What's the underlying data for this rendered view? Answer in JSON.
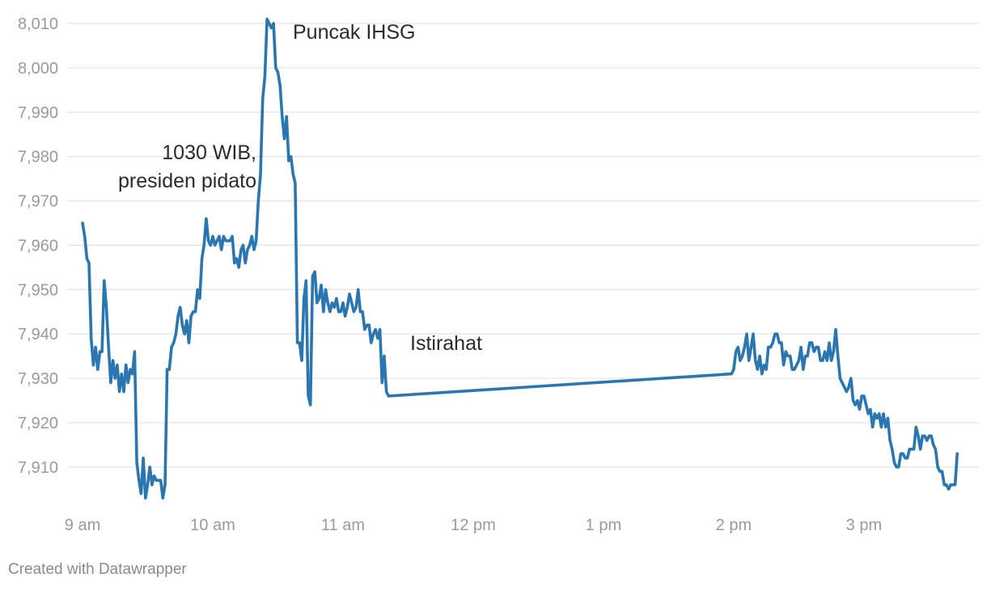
{
  "chart_data": {
    "type": "line",
    "x_unit": "time of day (WIB)",
    "xlim": [
      "9:00",
      "15:50"
    ],
    "ylim": [
      7902,
      8012
    ],
    "grid": true,
    "y_ticks": [
      7910,
      7920,
      7930,
      7940,
      7950,
      7960,
      7970,
      7980,
      7990,
      8000,
      8010
    ],
    "y_tick_labels": [
      "7,910",
      "7,920",
      "7,930",
      "7,940",
      "7,950",
      "7,960",
      "7,970",
      "7,980",
      "7,990",
      "8,000",
      "8,010"
    ],
    "x_ticks": [
      "9:00",
      "10:00",
      "11:00",
      "12:00",
      "13:00",
      "14:00",
      "15:00"
    ],
    "x_tick_labels": [
      "9 am",
      "10 am",
      "11 am",
      "12 pm",
      "1 pm",
      "2 pm",
      "3 pm"
    ],
    "series": [
      {
        "color": "#2a76b0",
        "points": [
          [
            "9:00",
            7965
          ],
          [
            "9:01",
            7962
          ],
          [
            "9:02",
            7957
          ],
          [
            "9:03",
            7956
          ],
          [
            "9:04",
            7939
          ],
          [
            "9:05",
            7933
          ],
          [
            "9:06",
            7937
          ],
          [
            "9:07",
            7932
          ],
          [
            "9:08",
            7936
          ],
          [
            "9:09",
            7936
          ],
          [
            "9:10",
            7952
          ],
          [
            "9:11",
            7946
          ],
          [
            "9:12",
            7937
          ],
          [
            "9:13",
            7929
          ],
          [
            "9:14",
            7934
          ],
          [
            "9:15",
            7930
          ],
          [
            "9:16",
            7933
          ],
          [
            "9:17",
            7927
          ],
          [
            "9:18",
            7931
          ],
          [
            "9:19",
            7927
          ],
          [
            "9:20",
            7933
          ],
          [
            "9:21",
            7929
          ],
          [
            "9:22",
            7932
          ],
          [
            "9:23",
            7931
          ],
          [
            "9:24",
            7936
          ],
          [
            "9:25",
            7911
          ],
          [
            "9:26",
            7907
          ],
          [
            "9:27",
            7904
          ],
          [
            "9:28",
            7912
          ],
          [
            "9:29",
            7903
          ],
          [
            "9:30",
            7906
          ],
          [
            "9:31",
            7910
          ],
          [
            "9:32",
            7906
          ],
          [
            "9:33",
            7908
          ],
          [
            "9:34",
            7907
          ],
          [
            "9:35",
            7907
          ],
          [
            "9:36",
            7907
          ],
          [
            "9:37",
            7903
          ],
          [
            "9:38",
            7906
          ],
          [
            "9:39",
            7932
          ],
          [
            "9:40",
            7932
          ],
          [
            "9:41",
            7937
          ],
          [
            "9:42",
            7938
          ],
          [
            "9:43",
            7940
          ],
          [
            "9:44",
            7944
          ],
          [
            "9:45",
            7946
          ],
          [
            "9:46",
            7942
          ],
          [
            "9:47",
            7940
          ],
          [
            "9:48",
            7943
          ],
          [
            "9:49",
            7938
          ],
          [
            "9:50",
            7944
          ],
          [
            "9:51",
            7945
          ],
          [
            "9:52",
            7945
          ],
          [
            "9:53",
            7950
          ],
          [
            "9:54",
            7948
          ],
          [
            "9:55",
            7957
          ],
          [
            "9:56",
            7960
          ],
          [
            "9:57",
            7966
          ],
          [
            "9:58",
            7961
          ],
          [
            "9:59",
            7960
          ],
          [
            "10:00",
            7962
          ],
          [
            "10:01",
            7960
          ],
          [
            "10:02",
            7961
          ],
          [
            "10:03",
            7962
          ],
          [
            "10:04",
            7959
          ],
          [
            "10:05",
            7962
          ],
          [
            "10:06",
            7961
          ],
          [
            "10:07",
            7961
          ],
          [
            "10:08",
            7961
          ],
          [
            "10:09",
            7962
          ],
          [
            "10:10",
            7956
          ],
          [
            "10:11",
            7957
          ],
          [
            "10:12",
            7955
          ],
          [
            "10:13",
            7959
          ],
          [
            "10:14",
            7960
          ],
          [
            "10:15",
            7956
          ],
          [
            "10:16",
            7959
          ],
          [
            "10:17",
            7960
          ],
          [
            "10:18",
            7962
          ],
          [
            "10:19",
            7959
          ],
          [
            "10:20",
            7961
          ],
          [
            "10:21",
            7970
          ],
          [
            "10:22",
            7976
          ],
          [
            "10:23",
            7993
          ],
          [
            "10:24",
            7998
          ],
          [
            "10:25",
            8011
          ],
          [
            "10:26",
            8010
          ],
          [
            "10:27",
            8009
          ],
          [
            "10:28",
            8010
          ],
          [
            "10:29",
            8000
          ],
          [
            "10:30",
            7999
          ],
          [
            "10:31",
            7996
          ],
          [
            "10:32",
            7989
          ],
          [
            "10:33",
            7984
          ],
          [
            "10:34",
            7989
          ],
          [
            "10:35",
            7979
          ],
          [
            "10:36",
            7980
          ],
          [
            "10:37",
            7976
          ],
          [
            "10:38",
            7974
          ],
          [
            "10:39",
            7938
          ],
          [
            "10:40",
            7938
          ],
          [
            "10:41",
            7934
          ],
          [
            "10:42",
            7948
          ],
          [
            "10:43",
            7952
          ],
          [
            "10:44",
            7926
          ],
          [
            "10:45",
            7924
          ],
          [
            "10:46",
            7953
          ],
          [
            "10:47",
            7954
          ],
          [
            "10:48",
            7947
          ],
          [
            "10:49",
            7948
          ],
          [
            "10:50",
            7951
          ],
          [
            "10:51",
            7945
          ],
          [
            "10:52",
            7950
          ],
          [
            "10:53",
            7947
          ],
          [
            "10:54",
            7945
          ],
          [
            "10:55",
            7947
          ],
          [
            "10:56",
            7946
          ],
          [
            "10:57",
            7948
          ],
          [
            "10:58",
            7945
          ],
          [
            "10:59",
            7945
          ],
          [
            "11:00",
            7947
          ],
          [
            "11:01",
            7944
          ],
          [
            "11:02",
            7946
          ],
          [
            "11:03",
            7949
          ],
          [
            "11:04",
            7947
          ],
          [
            "11:05",
            7945
          ],
          [
            "11:06",
            7946
          ],
          [
            "11:07",
            7950
          ],
          [
            "11:08",
            7945
          ],
          [
            "11:09",
            7945
          ],
          [
            "11:10",
            7941
          ],
          [
            "11:11",
            7942
          ],
          [
            "11:12",
            7942
          ],
          [
            "11:13",
            7938
          ],
          [
            "11:14",
            7940
          ],
          [
            "11:15",
            7941
          ],
          [
            "11:16",
            7939
          ],
          [
            "11:17",
            7941
          ],
          [
            "11:18",
            7929
          ],
          [
            "11:19",
            7935
          ],
          [
            "11:20",
            7927
          ],
          [
            "11:21",
            7926
          ],
          [
            "13:59",
            7931
          ],
          [
            "14:00",
            7932
          ],
          [
            "14:01",
            7936
          ],
          [
            "14:02",
            7937
          ],
          [
            "14:03",
            7934
          ],
          [
            "14:04",
            7935
          ],
          [
            "14:05",
            7937
          ],
          [
            "14:06",
            7940
          ],
          [
            "14:07",
            7934
          ],
          [
            "14:08",
            7937
          ],
          [
            "14:09",
            7940
          ],
          [
            "14:10",
            7934
          ],
          [
            "14:11",
            7932
          ],
          [
            "14:12",
            7935
          ],
          [
            "14:13",
            7931
          ],
          [
            "14:14",
            7933
          ],
          [
            "14:15",
            7932
          ],
          [
            "14:16",
            7937
          ],
          [
            "14:17",
            7937
          ],
          [
            "14:18",
            7938
          ],
          [
            "14:19",
            7940
          ],
          [
            "14:20",
            7940
          ],
          [
            "14:21",
            7938
          ],
          [
            "14:22",
            7938
          ],
          [
            "14:23",
            7933
          ],
          [
            "14:24",
            7936
          ],
          [
            "14:25",
            7935
          ],
          [
            "14:26",
            7935
          ],
          [
            "14:27",
            7932
          ],
          [
            "14:28",
            7932
          ],
          [
            "14:29",
            7933
          ],
          [
            "14:30",
            7934
          ],
          [
            "14:31",
            7937
          ],
          [
            "14:32",
            7932
          ],
          [
            "14:33",
            7935
          ],
          [
            "14:34",
            7935
          ],
          [
            "14:35",
            7938
          ],
          [
            "14:36",
            7938
          ],
          [
            "14:37",
            7936
          ],
          [
            "14:38",
            7937
          ],
          [
            "14:39",
            7937
          ],
          [
            "14:40",
            7934
          ],
          [
            "14:41",
            7934
          ],
          [
            "14:42",
            7936
          ],
          [
            "14:43",
            7934
          ],
          [
            "14:44",
            7938
          ],
          [
            "14:45",
            7934
          ],
          [
            "14:46",
            7936
          ],
          [
            "14:47",
            7941
          ],
          [
            "14:48",
            7935
          ],
          [
            "14:49",
            7930
          ],
          [
            "14:50",
            7929
          ],
          [
            "14:51",
            7928
          ],
          [
            "14:52",
            7927
          ],
          [
            "14:53",
            7928
          ],
          [
            "14:54",
            7930
          ],
          [
            "14:55",
            7925
          ],
          [
            "14:56",
            7924
          ],
          [
            "14:57",
            7925
          ],
          [
            "14:58",
            7923
          ],
          [
            "14:59",
            7926
          ],
          [
            "15:00",
            7926
          ],
          [
            "15:01",
            7924
          ],
          [
            "15:02",
            7922
          ],
          [
            "15:03",
            7923
          ],
          [
            "15:04",
            7919
          ],
          [
            "15:05",
            7922
          ],
          [
            "15:06",
            7921
          ],
          [
            "15:07",
            7922
          ],
          [
            "15:08",
            7919
          ],
          [
            "15:09",
            7922
          ],
          [
            "15:10",
            7919
          ],
          [
            "15:11",
            7921
          ],
          [
            "15:12",
            7916
          ],
          [
            "15:13",
            7914
          ],
          [
            "15:14",
            7911
          ],
          [
            "15:15",
            7910
          ],
          [
            "15:16",
            7910
          ],
          [
            "15:17",
            7913
          ],
          [
            "15:18",
            7913
          ],
          [
            "15:19",
            7912
          ],
          [
            "15:20",
            7912
          ],
          [
            "15:21",
            7914
          ],
          [
            "15:22",
            7914
          ],
          [
            "15:23",
            7914
          ],
          [
            "15:24",
            7919
          ],
          [
            "15:25",
            7917
          ],
          [
            "15:26",
            7914
          ],
          [
            "15:27",
            7917
          ],
          [
            "15:28",
            7917
          ],
          [
            "15:29",
            7916
          ],
          [
            "15:30",
            7917
          ],
          [
            "15:31",
            7917
          ],
          [
            "15:32",
            7915
          ],
          [
            "15:33",
            7914
          ],
          [
            "15:34",
            7910
          ],
          [
            "15:35",
            7909
          ],
          [
            "15:36",
            7909
          ],
          [
            "15:37",
            7906
          ],
          [
            "15:38",
            7906
          ],
          [
            "15:39",
            7905
          ],
          [
            "15:40",
            7906
          ],
          [
            "15:41",
            7906
          ],
          [
            "15:42",
            7906
          ],
          [
            "15:43",
            7913
          ]
        ]
      }
    ],
    "annotations": [
      {
        "text": "Puncak IHSG",
        "x": "10:26",
        "y": 8010
      },
      {
        "text": "1030 WIB,",
        "x": "10:16",
        "y": 7982
      },
      {
        "text": "presiden pidato",
        "x": "10:16",
        "y": 7975
      },
      {
        "text": "Istirahat",
        "x": "11:22",
        "y": 7938
      }
    ]
  },
  "credit": "Created with Datawrapper"
}
